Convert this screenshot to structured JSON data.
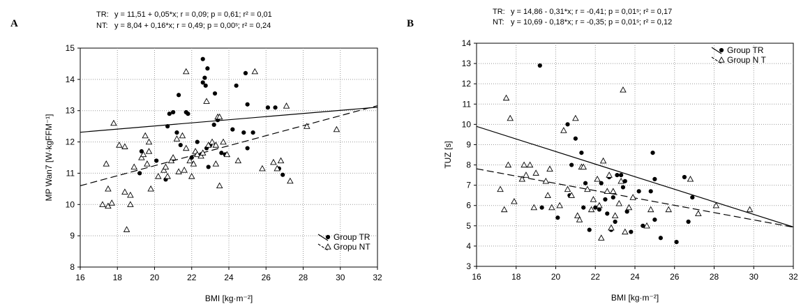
{
  "chart_data": [
    {
      "type": "scatter",
      "panel": "A",
      "stats": [
        {
          "group": "TR",
          "label": "TR:",
          "text": "y = 11,51 + 0,05*x;  r = 0,09; p = 0,61; r² = 0,01"
        },
        {
          "group": "NT",
          "label": "NT:",
          "text": "y = 8,04 + 0,16*x;  r = 0,49; p = 0,00ˢ; r² = 0,24"
        }
      ],
      "xlabel": "BMI [kg·m⁻²]",
      "ylabel": "MP Wan7 [W·kgFFM⁻¹]",
      "xlim": [
        16,
        32
      ],
      "ylim": [
        8,
        15
      ],
      "xticks": [
        "16",
        "18",
        "20",
        "22",
        "24",
        "26",
        "28",
        "30",
        "32"
      ],
      "yticks": [
        "8",
        "9",
        "10",
        "11",
        "12",
        "13",
        "14",
        "15"
      ],
      "grid": true,
      "legend": {
        "position": "bottom-right",
        "entries": [
          "Group TR",
          "Gropu NT"
        ]
      },
      "fits": [
        {
          "name": "Group TR",
          "style": "solid",
          "intercept": 11.51,
          "slope": 0.05
        },
        {
          "name": "Gropu NT",
          "style": "dashed",
          "intercept": 8.04,
          "slope": 0.16
        }
      ],
      "series": [
        {
          "name": "Group TR",
          "marker": "filled-circle",
          "points": [
            [
              19.2,
              11.0
            ],
            [
              19.3,
              11.7
            ],
            [
              20.1,
              11.4
            ],
            [
              20.6,
              10.8
            ],
            [
              20.7,
              12.5
            ],
            [
              20.8,
              12.9
            ],
            [
              21.0,
              12.95
            ],
            [
              21.2,
              12.3
            ],
            [
              21.3,
              13.5
            ],
            [
              21.4,
              11.9
            ],
            [
              21.7,
              12.95
            ],
            [
              21.8,
              12.9
            ],
            [
              22.0,
              11.5
            ],
            [
              22.3,
              12.0
            ],
            [
              22.5,
              11.6
            ],
            [
              22.6,
              14.65
            ],
            [
              22.6,
              13.9
            ],
            [
              22.7,
              14.05
            ],
            [
              22.75,
              13.8
            ],
            [
              22.8,
              11.8
            ],
            [
              22.85,
              14.35
            ],
            [
              22.9,
              11.2
            ],
            [
              23.0,
              11.9
            ],
            [
              23.2,
              12.55
            ],
            [
              23.25,
              13.55
            ],
            [
              23.4,
              12.7
            ],
            [
              23.6,
              11.65
            ],
            [
              23.8,
              11.6
            ],
            [
              24.2,
              12.4
            ],
            [
              24.4,
              13.8
            ],
            [
              24.8,
              12.3
            ],
            [
              24.9,
              14.2
            ],
            [
              25.0,
              13.2
            ],
            [
              25.0,
              11.8
            ],
            [
              25.3,
              12.3
            ],
            [
              26.1,
              13.1
            ],
            [
              26.5,
              13.1
            ],
            [
              26.7,
              11.15
            ],
            [
              26.9,
              10.95
            ]
          ]
        },
        {
          "name": "Gropu NT",
          "marker": "open-triangle",
          "points": [
            [
              17.2,
              10.0
            ],
            [
              17.4,
              11.3
            ],
            [
              17.5,
              10.5
            ],
            [
              17.5,
              9.95
            ],
            [
              17.7,
              10.05
            ],
            [
              17.8,
              12.6
            ],
            [
              18.1,
              11.9
            ],
            [
              18.4,
              11.85
            ],
            [
              18.4,
              10.4
            ],
            [
              18.5,
              9.2
            ],
            [
              18.7,
              10.3
            ],
            [
              18.7,
              10.0
            ],
            [
              18.9,
              11.2
            ],
            [
              19.3,
              11.5
            ],
            [
              19.4,
              11.6
            ],
            [
              19.5,
              12.2
            ],
            [
              19.6,
              11.3
            ],
            [
              19.7,
              11.7
            ],
            [
              19.7,
              12.0
            ],
            [
              19.8,
              10.5
            ],
            [
              20.2,
              10.9
            ],
            [
              20.5,
              11.1
            ],
            [
              20.6,
              11.2
            ],
            [
              20.7,
              10.9
            ],
            [
              20.9,
              11.4
            ],
            [
              21.0,
              11.5
            ],
            [
              21.2,
              12.1
            ],
            [
              21.3,
              11.05
            ],
            [
              21.5,
              12.2
            ],
            [
              21.6,
              11.1
            ],
            [
              21.7,
              11.8
            ],
            [
              21.9,
              11.4
            ],
            [
              22.0,
              10.9
            ],
            [
              22.1,
              11.3
            ],
            [
              22.2,
              11.7
            ],
            [
              22.3,
              11.6
            ],
            [
              22.5,
              11.55
            ],
            [
              22.6,
              11.65
            ],
            [
              22.8,
              13.3
            ],
            [
              22.9,
              11.9
            ],
            [
              23.1,
              12.0
            ],
            [
              23.3,
              11.3
            ],
            [
              23.3,
              11.9
            ],
            [
              23.4,
              12.8
            ],
            [
              23.5,
              12.8
            ],
            [
              23.5,
              10.6
            ],
            [
              23.7,
              12.0
            ],
            [
              23.9,
              11.6
            ],
            [
              24.5,
              11.4
            ],
            [
              25.8,
              11.15
            ],
            [
              26.4,
              11.35
            ],
            [
              26.6,
              11.15
            ],
            [
              26.8,
              11.4
            ],
            [
              27.1,
              13.15
            ],
            [
              27.3,
              10.75
            ],
            [
              28.2,
              12.5
            ],
            [
              29.8,
              12.4
            ],
            [
              25.4,
              14.25
            ],
            [
              21.7,
              14.25
            ]
          ]
        }
      ]
    },
    {
      "type": "scatter",
      "panel": "B",
      "stats": [
        {
          "group": "TR",
          "label": "TR:",
          "text": "y = 14,86 - 0,31*x;  r = -0,41; p = 0,01ˢ; r² = 0,17"
        },
        {
          "group": "NT",
          "label": "NT:",
          "text": "y = 10,69 - 0,18*x;  r = -0,35; p = 0,01ˢ; r² = 0,12"
        }
      ],
      "xlabel": "BMI [kg·m⁻²]",
      "ylabel": "TUZ [s]",
      "xlim": [
        16,
        32
      ],
      "ylim": [
        3,
        14
      ],
      "xticks": [
        "16",
        "18",
        "20",
        "22",
        "24",
        "26",
        "28",
        "30",
        "32"
      ],
      "yticks": [
        "3",
        "4",
        "5",
        "6",
        "7",
        "8",
        "9",
        "10",
        "11",
        "12",
        "13",
        "14"
      ],
      "grid": true,
      "legend": {
        "position": "top-right",
        "entries": [
          "Group TR",
          "Group N T"
        ]
      },
      "fits": [
        {
          "name": "Group TR",
          "style": "solid",
          "intercept": 14.86,
          "slope": -0.31
        },
        {
          "name": "Group N T",
          "style": "dashed",
          "intercept": 10.69,
          "slope": -0.18
        }
      ],
      "series": [
        {
          "name": "Group TR",
          "marker": "filled-circle",
          "points": [
            [
              19.2,
              12.9
            ],
            [
              19.3,
              5.9
            ],
            [
              20.1,
              5.4
            ],
            [
              20.6,
              10.0
            ],
            [
              20.7,
              6.5
            ],
            [
              20.8,
              8.0
            ],
            [
              21.0,
              9.3
            ],
            [
              21.3,
              8.6
            ],
            [
              21.4,
              5.9
            ],
            [
              21.5,
              7.1
            ],
            [
              21.7,
              4.8
            ],
            [
              22.0,
              5.9
            ],
            [
              22.3,
              7.1
            ],
            [
              22.5,
              6.3
            ],
            [
              22.6,
              5.6
            ],
            [
              22.7,
              7.4
            ],
            [
              22.8,
              4.8
            ],
            [
              22.9,
              6.4
            ],
            [
              23.0,
              5.2
            ],
            [
              23.1,
              7.5
            ],
            [
              23.3,
              7.5
            ],
            [
              23.4,
              6.9
            ],
            [
              23.6,
              5.7
            ],
            [
              23.8,
              4.7
            ],
            [
              24.2,
              6.7
            ],
            [
              24.4,
              5.0
            ],
            [
              24.8,
              6.7
            ],
            [
              24.9,
              8.6
            ],
            [
              25.0,
              7.3
            ],
            [
              25.0,
              5.3
            ],
            [
              25.3,
              4.4
            ],
            [
              26.1,
              4.2
            ],
            [
              26.5,
              7.4
            ],
            [
              26.7,
              5.2
            ],
            [
              26.9,
              6.4
            ],
            [
              23.5,
              7.2
            ],
            [
              22.2,
              5.8
            ]
          ]
        },
        {
          "name": "Group N T",
          "marker": "open-triangle",
          "points": [
            [
              17.2,
              6.8
            ],
            [
              17.4,
              5.8
            ],
            [
              17.5,
              11.3
            ],
            [
              17.6,
              8.0
            ],
            [
              17.7,
              10.3
            ],
            [
              17.9,
              6.2
            ],
            [
              18.3,
              7.3
            ],
            [
              18.4,
              8.0
            ],
            [
              18.5,
              7.5
            ],
            [
              18.7,
              8.0
            ],
            [
              18.9,
              5.9
            ],
            [
              19.0,
              7.6
            ],
            [
              19.5,
              7.2
            ],
            [
              19.6,
              6.5
            ],
            [
              19.7,
              7.8
            ],
            [
              19.8,
              5.9
            ],
            [
              20.2,
              6.0
            ],
            [
              20.6,
              6.8
            ],
            [
              20.8,
              6.5
            ],
            [
              21.1,
              5.5
            ],
            [
              21.2,
              5.3
            ],
            [
              21.3,
              7.9
            ],
            [
              21.4,
              7.9
            ],
            [
              21.6,
              6.8
            ],
            [
              21.8,
              5.8
            ],
            [
              21.9,
              6.3
            ],
            [
              22.1,
              7.3
            ],
            [
              22.2,
              6.0
            ],
            [
              22.3,
              4.4
            ],
            [
              22.4,
              8.2
            ],
            [
              22.6,
              6.7
            ],
            [
              22.7,
              7.5
            ],
            [
              22.8,
              4.9
            ],
            [
              22.9,
              6.7
            ],
            [
              23.0,
              5.5
            ],
            [
              23.3,
              7.2
            ],
            [
              23.4,
              11.7
            ],
            [
              23.5,
              4.7
            ],
            [
              23.7,
              5.9
            ],
            [
              23.9,
              6.4
            ],
            [
              24.6,
              5.0
            ],
            [
              24.8,
              5.8
            ],
            [
              25.7,
              5.8
            ],
            [
              26.8,
              7.3
            ],
            [
              27.2,
              5.6
            ],
            [
              28.1,
              6.0
            ],
            [
              29.8,
              5.8
            ],
            [
              20.4,
              9.7
            ],
            [
              21.0,
              10.3
            ],
            [
              23.2,
              6.1
            ]
          ]
        }
      ]
    }
  ]
}
